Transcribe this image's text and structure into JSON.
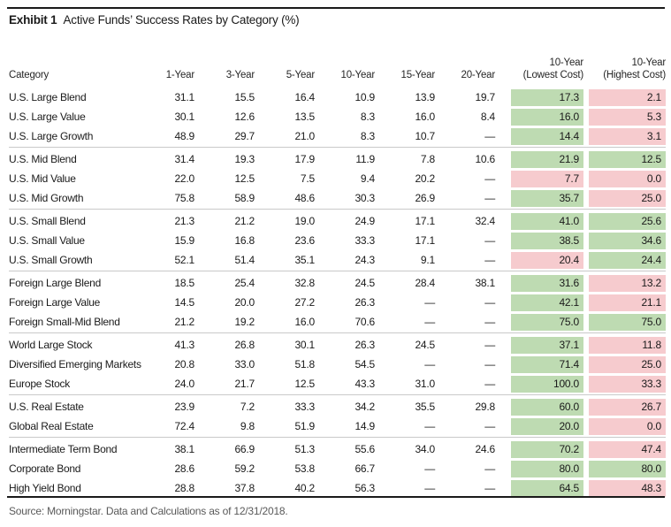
{
  "title": {
    "exhibit_label": "Exhibit 1",
    "title_text": "Active Funds’ Success Rates by Category (%)"
  },
  "source_note": "Source: Morningstar. Data and Calculations as of  12/31/2018.",
  "colors": {
    "success_green": "#BEDBB2",
    "fail_pink": "#F6CBCE",
    "rule_black": "#1a1a1a",
    "separator_gray": "#c9c9c9",
    "source_gray": "#595959"
  },
  "chart_data": {
    "type": "table",
    "title": "Active Funds' Success Rates by Category (%)",
    "columns": [
      "Category",
      "1-Year",
      "3-Year",
      "5-Year",
      "10-Year",
      "15-Year",
      "20-Year",
      "10-Year (Lowest Cost)",
      "10-Year (Highest Cost)"
    ],
    "rows": [
      {
        "category": "U.S. Large Blend",
        "values": [
          "31.1",
          "15.5",
          "16.4",
          "10.9",
          "13.9",
          "19.7"
        ],
        "lowest_cost": "17.3",
        "lowest_cost_color": "green",
        "highest_cost": "2.1",
        "highest_cost_color": "red",
        "group_end": false
      },
      {
        "category": "U.S. Large Value",
        "values": [
          "30.1",
          "12.6",
          "13.5",
          "8.3",
          "16.0",
          "8.4"
        ],
        "lowest_cost": "16.0",
        "lowest_cost_color": "green",
        "highest_cost": "5.3",
        "highest_cost_color": "red",
        "group_end": false
      },
      {
        "category": "U.S. Large Growth",
        "values": [
          "48.9",
          "29.7",
          "21.0",
          "8.3",
          "10.7",
          "—"
        ],
        "lowest_cost": "14.4",
        "lowest_cost_color": "green",
        "highest_cost": "3.1",
        "highest_cost_color": "red",
        "group_end": true
      },
      {
        "category": "U.S. Mid Blend",
        "values": [
          "31.4",
          "19.3",
          "17.9",
          "11.9",
          "7.8",
          "10.6"
        ],
        "lowest_cost": "21.9",
        "lowest_cost_color": "green",
        "highest_cost": "12.5",
        "highest_cost_color": "green",
        "group_end": false
      },
      {
        "category": "U.S. Mid Value",
        "values": [
          "22.0",
          "12.5",
          "7.5",
          "9.4",
          "20.2",
          "—"
        ],
        "lowest_cost": "7.7",
        "lowest_cost_color": "red",
        "highest_cost": "0.0",
        "highest_cost_color": "red",
        "group_end": false
      },
      {
        "category": "U.S. Mid Growth",
        "values": [
          "75.8",
          "58.9",
          "48.6",
          "30.3",
          "26.9",
          "—"
        ],
        "lowest_cost": "35.7",
        "lowest_cost_color": "green",
        "highest_cost": "25.0",
        "highest_cost_color": "red",
        "group_end": true
      },
      {
        "category": "U.S. Small Blend",
        "values": [
          "21.3",
          "21.2",
          "19.0",
          "24.9",
          "17.1",
          "32.4"
        ],
        "lowest_cost": "41.0",
        "lowest_cost_color": "green",
        "highest_cost": "25.6",
        "highest_cost_color": "green",
        "group_end": false
      },
      {
        "category": "U.S. Small Value",
        "values": [
          "15.9",
          "16.8",
          "23.6",
          "33.3",
          "17.1",
          "—"
        ],
        "lowest_cost": "38.5",
        "lowest_cost_color": "green",
        "highest_cost": "34.6",
        "highest_cost_color": "green",
        "group_end": false
      },
      {
        "category": "U.S. Small Growth",
        "values": [
          "52.1",
          "51.4",
          "35.1",
          "24.3",
          "9.1",
          "—"
        ],
        "lowest_cost": "20.4",
        "lowest_cost_color": "red",
        "highest_cost": "24.4",
        "highest_cost_color": "green",
        "group_end": true
      },
      {
        "category": "Foreign Large Blend",
        "values": [
          "18.5",
          "25.4",
          "32.8",
          "24.5",
          "28.4",
          "38.1"
        ],
        "lowest_cost": "31.6",
        "lowest_cost_color": "green",
        "highest_cost": "13.2",
        "highest_cost_color": "red",
        "group_end": false
      },
      {
        "category": "Foreign Large Value",
        "values": [
          "14.5",
          "20.0",
          "27.2",
          "26.3",
          "—",
          "—"
        ],
        "lowest_cost": "42.1",
        "lowest_cost_color": "green",
        "highest_cost": "21.1",
        "highest_cost_color": "red",
        "group_end": false
      },
      {
        "category": "Foreign Small-Mid Blend",
        "values": [
          "21.2",
          "19.2",
          "16.0",
          "70.6",
          "—",
          "—"
        ],
        "lowest_cost": "75.0",
        "lowest_cost_color": "green",
        "highest_cost": "75.0",
        "highest_cost_color": "green",
        "group_end": true
      },
      {
        "category": "World Large Stock",
        "values": [
          "41.3",
          "26.8",
          "30.1",
          "26.3",
          "24.5",
          "—"
        ],
        "lowest_cost": "37.1",
        "lowest_cost_color": "green",
        "highest_cost": "11.8",
        "highest_cost_color": "red",
        "group_end": false
      },
      {
        "category": "Diversified Emerging Markets",
        "values": [
          "20.8",
          "33.0",
          "51.8",
          "54.5",
          "—",
          "—"
        ],
        "lowest_cost": "71.4",
        "lowest_cost_color": "green",
        "highest_cost": "25.0",
        "highest_cost_color": "red",
        "group_end": false
      },
      {
        "category": "Europe Stock",
        "values": [
          "24.0",
          "21.7",
          "12.5",
          "43.3",
          "31.0",
          "—"
        ],
        "lowest_cost": "100.0",
        "lowest_cost_color": "green",
        "highest_cost": "33.3",
        "highest_cost_color": "red",
        "group_end": true
      },
      {
        "category": "U.S. Real Estate",
        "values": [
          "23.9",
          "7.2",
          "33.3",
          "34.2",
          "35.5",
          "29.8"
        ],
        "lowest_cost": "60.0",
        "lowest_cost_color": "green",
        "highest_cost": "26.7",
        "highest_cost_color": "red",
        "group_end": false
      },
      {
        "category": "Global Real Estate",
        "values": [
          "72.4",
          "9.8",
          "51.9",
          "14.9",
          "—",
          "—"
        ],
        "lowest_cost": "20.0",
        "lowest_cost_color": "green",
        "highest_cost": "0.0",
        "highest_cost_color": "red",
        "group_end": true
      },
      {
        "category": "Intermediate Term Bond",
        "values": [
          "38.1",
          "66.9",
          "51.3",
          "55.6",
          "34.0",
          "24.6"
        ],
        "lowest_cost": "70.2",
        "lowest_cost_color": "green",
        "highest_cost": "47.4",
        "highest_cost_color": "red",
        "group_end": false
      },
      {
        "category": "Corporate Bond",
        "values": [
          "28.6",
          "59.2",
          "53.8",
          "66.7",
          "—",
          "—"
        ],
        "lowest_cost": "80.0",
        "lowest_cost_color": "green",
        "highest_cost": "80.0",
        "highest_cost_color": "green",
        "group_end": false
      },
      {
        "category": "High Yield Bond",
        "values": [
          "28.8",
          "37.8",
          "40.2",
          "56.3",
          "—",
          "—"
        ],
        "lowest_cost": "64.5",
        "lowest_cost_color": "green",
        "highest_cost": "48.3",
        "highest_cost_color": "red",
        "group_end": false
      }
    ]
  }
}
